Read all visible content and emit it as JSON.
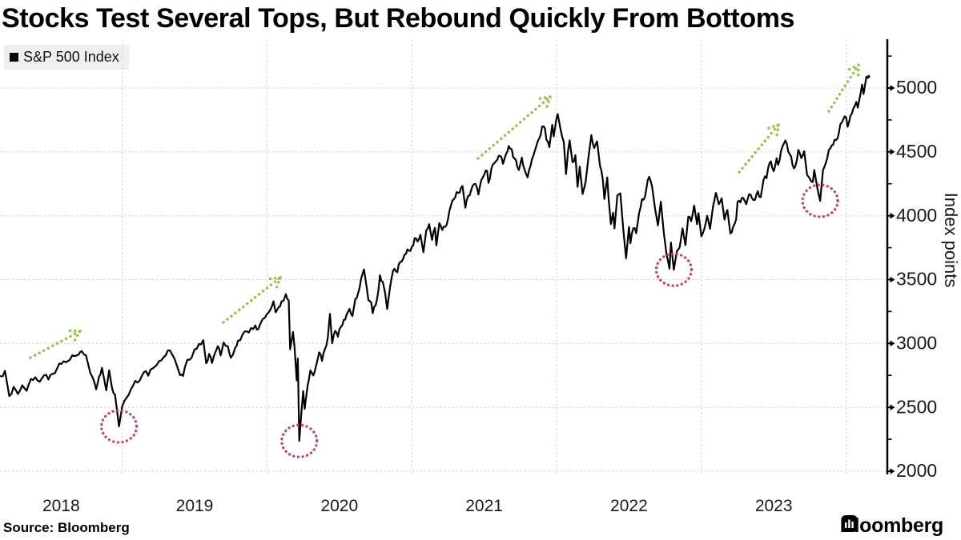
{
  "header": {
    "title": "Stocks Test Several Tops, But Rebound Quickly From Bottoms"
  },
  "legend": {
    "label": "S&P 500 Index",
    "swatch_color": "#0a0a0a"
  },
  "footer": {
    "source": "Source: Bloomberg",
    "brand": "Bloomberg"
  },
  "chart_data": {
    "type": "line",
    "title": "Stocks Test Several Tops, But Rebound Quickly From Bottoms",
    "series_name": "S&P 500 Index",
    "ylabel": "Index points",
    "xlabel": "",
    "x_tick_labels": [
      "2018",
      "2019",
      "2020",
      "2021",
      "2022",
      "2023"
    ],
    "x_gridline_years": [
      2019,
      2020,
      2021,
      2022,
      2023,
      2024
    ],
    "y_ticks": [
      2000,
      2500,
      3000,
      3500,
      4000,
      4500,
      5000
    ],
    "y_minor_ticks": [
      2250,
      2750,
      3250,
      3750,
      4250,
      4750,
      5250
    ],
    "ylim": [
      1825,
      5380
    ],
    "xlim_years": [
      2018.15,
      2024.3
    ],
    "grid": true,
    "legend_position": "top-left",
    "colors": {
      "line": "#000000",
      "top_arrows": "#8dc63d",
      "bottom_circles": "#e82c54",
      "grid": "#cccccc",
      "axis": "#000000",
      "tick_text": "#1a1a1a"
    },
    "annotations": {
      "tops_arrows": [
        {
          "from": [
            2018.366,
            2889
          ],
          "to": [
            2018.709,
            3096
          ]
        },
        {
          "from": [
            2019.699,
            3165
          ],
          "to": [
            2020.092,
            3516
          ]
        },
        {
          "from": [
            2021.458,
            4449
          ],
          "to": [
            2021.956,
            4931
          ]
        },
        {
          "from": [
            2023.261,
            4342
          ],
          "to": [
            2023.532,
            4712
          ]
        },
        {
          "from": [
            2023.88,
            4818
          ],
          "to": [
            2024.085,
            5181
          ]
        }
      ],
      "bottom_circles": [
        {
          "t": 2018.978,
          "value": 2351
        },
        {
          "t": 2020.223,
          "value": 2237
        },
        {
          "t": 2022.81,
          "value": 3577
        },
        {
          "t": 2023.82,
          "value": 4117
        }
      ]
    },
    "points": [
      [
        2018.16,
        2744
      ],
      [
        2018.19,
        2786
      ],
      [
        2018.22,
        2588
      ],
      [
        2018.25,
        2660
      ],
      [
        2018.28,
        2605
      ],
      [
        2018.31,
        2672
      ],
      [
        2018.34,
        2630
      ],
      [
        2018.37,
        2722
      ],
      [
        2018.4,
        2736
      ],
      [
        2018.43,
        2700
      ],
      [
        2018.46,
        2750
      ],
      [
        2018.49,
        2718
      ],
      [
        2018.52,
        2762
      ],
      [
        2018.55,
        2802
      ],
      [
        2018.58,
        2840
      ],
      [
        2018.61,
        2853
      ],
      [
        2018.64,
        2875
      ],
      [
        2018.67,
        2901
      ],
      [
        2018.7,
        2915
      ],
      [
        2018.72,
        2940
      ],
      [
        2018.75,
        2906
      ],
      [
        2018.78,
        2768
      ],
      [
        2018.8,
        2722
      ],
      [
        2018.82,
        2641
      ],
      [
        2018.84,
        2740
      ],
      [
        2018.86,
        2810
      ],
      [
        2018.89,
        2633
      ],
      [
        2018.91,
        2790
      ],
      [
        2018.93,
        2650
      ],
      [
        2018.95,
        2600
      ],
      [
        2018.978,
        2351
      ],
      [
        2019.0,
        2507
      ],
      [
        2019.03,
        2575
      ],
      [
        2019.06,
        2640
      ],
      [
        2019.09,
        2707
      ],
      [
        2019.12,
        2708
      ],
      [
        2019.15,
        2775
      ],
      [
        2019.18,
        2748
      ],
      [
        2019.21,
        2805
      ],
      [
        2019.24,
        2834
      ],
      [
        2019.27,
        2867
      ],
      [
        2019.3,
        2906
      ],
      [
        2019.33,
        2946
      ],
      [
        2019.36,
        2884
      ],
      [
        2019.4,
        2752
      ],
      [
        2019.42,
        2745
      ],
      [
        2019.45,
        2873
      ],
      [
        2019.48,
        2890
      ],
      [
        2019.5,
        2954
      ],
      [
        2019.53,
        2995
      ],
      [
        2019.56,
        3026
      ],
      [
        2019.58,
        2845
      ],
      [
        2019.6,
        2918
      ],
      [
        2019.62,
        2847
      ],
      [
        2019.64,
        2924
      ],
      [
        2019.66,
        2979
      ],
      [
        2019.68,
        2906
      ],
      [
        2019.7,
        3008
      ],
      [
        2019.73,
        2978
      ],
      [
        2019.75,
        2888
      ],
      [
        2019.78,
        2966
      ],
      [
        2019.8,
        3022
      ],
      [
        2019.83,
        3067
      ],
      [
        2019.86,
        3094
      ],
      [
        2019.89,
        3121
      ],
      [
        2019.92,
        3141
      ],
      [
        2019.94,
        3113
      ],
      [
        2019.97,
        3192
      ],
      [
        2020.0,
        3231
      ],
      [
        2020.02,
        3258
      ],
      [
        2020.045,
        3330
      ],
      [
        2020.06,
        3244
      ],
      [
        2020.08,
        3283
      ],
      [
        2020.1,
        3328
      ],
      [
        2020.13,
        3386
      ],
      [
        2020.15,
        3338
      ],
      [
        2020.16,
        2954
      ],
      [
        2020.18,
        3090
      ],
      [
        2020.19,
        2972
      ],
      [
        2020.205,
        2711
      ],
      [
        2020.213,
        2882
      ],
      [
        2020.223,
        2237
      ],
      [
        2020.237,
        2448
      ],
      [
        2020.25,
        2627
      ],
      [
        2020.26,
        2488
      ],
      [
        2020.28,
        2663
      ],
      [
        2020.3,
        2790
      ],
      [
        2020.32,
        2750
      ],
      [
        2020.34,
        2830
      ],
      [
        2020.36,
        2930
      ],
      [
        2020.38,
        2863
      ],
      [
        2020.4,
        2955
      ],
      [
        2020.42,
        3044
      ],
      [
        2020.435,
        3232
      ],
      [
        2020.45,
        3002
      ],
      [
        2020.47,
        3098
      ],
      [
        2020.49,
        3053
      ],
      [
        2020.51,
        3130
      ],
      [
        2020.53,
        3185
      ],
      [
        2020.55,
        3226
      ],
      [
        2020.57,
        3271
      ],
      [
        2020.59,
        3215
      ],
      [
        2020.61,
        3349
      ],
      [
        2020.63,
        3397
      ],
      [
        2020.65,
        3508
      ],
      [
        2020.67,
        3580
      ],
      [
        2020.69,
        3427
      ],
      [
        2020.7,
        3339
      ],
      [
        2020.72,
        3319
      ],
      [
        2020.73,
        3237
      ],
      [
        2020.75,
        3298
      ],
      [
        2020.77,
        3419
      ],
      [
        2020.78,
        3534
      ],
      [
        2020.8,
        3483
      ],
      [
        2020.815,
        3400
      ],
      [
        2020.83,
        3270
      ],
      [
        2020.85,
        3443
      ],
      [
        2020.86,
        3510
      ],
      [
        2020.88,
        3585
      ],
      [
        2020.9,
        3557
      ],
      [
        2020.92,
        3638
      ],
      [
        2020.94,
        3663
      ],
      [
        2020.96,
        3703
      ],
      [
        2020.98,
        3727
      ],
      [
        2021.0,
        3756
      ],
      [
        2021.02,
        3825
      ],
      [
        2021.04,
        3798
      ],
      [
        2021.06,
        3851
      ],
      [
        2021.08,
        3714
      ],
      [
        2021.1,
        3886
      ],
      [
        2021.12,
        3934
      ],
      [
        2021.14,
        3811
      ],
      [
        2021.16,
        3906
      ],
      [
        2021.17,
        3768
      ],
      [
        2021.19,
        3943
      ],
      [
        2021.21,
        3889
      ],
      [
        2021.23,
        3913
      ],
      [
        2021.25,
        3973
      ],
      [
        2021.27,
        4078
      ],
      [
        2021.29,
        4128
      ],
      [
        2021.31,
        4185
      ],
      [
        2021.33,
        4181
      ],
      [
        2021.35,
        4233
      ],
      [
        2021.37,
        4063
      ],
      [
        2021.39,
        4156
      ],
      [
        2021.41,
        4200
      ],
      [
        2021.43,
        4247
      ],
      [
        2021.45,
        4221
      ],
      [
        2021.46,
        4166
      ],
      [
        2021.48,
        4280
      ],
      [
        2021.5,
        4320
      ],
      [
        2021.52,
        4352
      ],
      [
        2021.53,
        4258
      ],
      [
        2021.55,
        4370
      ],
      [
        2021.57,
        4412
      ],
      [
        2021.59,
        4437
      ],
      [
        2021.61,
        4468
      ],
      [
        2021.63,
        4406
      ],
      [
        2021.65,
        4480
      ],
      [
        2021.67,
        4545
      ],
      [
        2021.69,
        4520
      ],
      [
        2021.7,
        4458
      ],
      [
        2021.72,
        4433
      ],
      [
        2021.74,
        4358
      ],
      [
        2021.76,
        4455
      ],
      [
        2021.78,
        4357
      ],
      [
        2021.8,
        4300
      ],
      [
        2021.82,
        4391
      ],
      [
        2021.84,
        4472
      ],
      [
        2021.86,
        4545
      ],
      [
        2021.88,
        4605
      ],
      [
        2021.9,
        4698
      ],
      [
        2021.92,
        4683
      ],
      [
        2021.93,
        4595
      ],
      [
        2021.95,
        4538
      ],
      [
        2021.97,
        4712
      ],
      [
        2021.98,
        4621
      ],
      [
        2022.0,
        4766
      ],
      [
        2022.008,
        4796
      ],
      [
        2022.03,
        4663
      ],
      [
        2022.05,
        4577
      ],
      [
        2022.065,
        4327
      ],
      [
        2022.08,
        4515
      ],
      [
        2022.09,
        4590
      ],
      [
        2022.11,
        4419
      ],
      [
        2022.13,
        4475
      ],
      [
        2022.145,
        4226
      ],
      [
        2022.16,
        4384
      ],
      [
        2022.18,
        4170
      ],
      [
        2022.2,
        4263
      ],
      [
        2022.22,
        4456
      ],
      [
        2022.24,
        4631
      ],
      [
        2022.26,
        4530
      ],
      [
        2022.28,
        4582
      ],
      [
        2022.3,
        4392
      ],
      [
        2022.32,
        4272
      ],
      [
        2022.33,
        4131
      ],
      [
        2022.35,
        4300
      ],
      [
        2022.36,
        4124
      ],
      [
        2022.375,
        3935
      ],
      [
        2022.39,
        4024
      ],
      [
        2022.4,
        3901
      ],
      [
        2022.42,
        4158
      ],
      [
        2022.44,
        4176
      ],
      [
        2022.46,
        3900
      ],
      [
        2022.48,
        3667
      ],
      [
        2022.5,
        3912
      ],
      [
        2022.51,
        3785
      ],
      [
        2022.53,
        3902
      ],
      [
        2022.55,
        3863
      ],
      [
        2022.57,
        4023
      ],
      [
        2022.59,
        4130
      ],
      [
        2022.61,
        4145
      ],
      [
        2022.63,
        4280
      ],
      [
        2022.64,
        4305
      ],
      [
        2022.66,
        4228
      ],
      [
        2022.68,
        4058
      ],
      [
        2022.7,
        3924
      ],
      [
        2022.72,
        4110
      ],
      [
        2022.74,
        3873
      ],
      [
        2022.76,
        3693
      ],
      [
        2022.78,
        3586
      ],
      [
        2022.79,
        3790
      ],
      [
        2022.81,
        3577
      ],
      [
        2022.83,
        3720
      ],
      [
        2022.85,
        3753
      ],
      [
        2022.87,
        3901
      ],
      [
        2022.89,
        3770
      ],
      [
        2022.91,
        3993
      ],
      [
        2022.93,
        3957
      ],
      [
        2022.95,
        4080
      ],
      [
        2022.97,
        3934
      ],
      [
        2022.98,
        4020
      ],
      [
        2023.0,
        3839
      ],
      [
        2023.02,
        3895
      ],
      [
        2023.04,
        3999
      ],
      [
        2023.06,
        3898
      ],
      [
        2023.08,
        4070
      ],
      [
        2023.1,
        4179
      ],
      [
        2023.12,
        4090
      ],
      [
        2023.14,
        4136
      ],
      [
        2023.16,
        3970
      ],
      [
        2023.18,
        4045
      ],
      [
        2023.2,
        3861
      ],
      [
        2023.22,
        3916
      ],
      [
        2023.24,
        3971
      ],
      [
        2023.25,
        4109
      ],
      [
        2023.27,
        4105
      ],
      [
        2023.29,
        4138
      ],
      [
        2023.31,
        4090
      ],
      [
        2023.33,
        4169
      ],
      [
        2023.35,
        4136
      ],
      [
        2023.37,
        4124
      ],
      [
        2023.39,
        4192
      ],
      [
        2023.41,
        4145
      ],
      [
        2023.43,
        4282
      ],
      [
        2023.45,
        4294
      ],
      [
        2023.47,
        4410
      ],
      [
        2023.48,
        4426
      ],
      [
        2023.5,
        4348
      ],
      [
        2023.52,
        4450
      ],
      [
        2023.53,
        4399
      ],
      [
        2023.55,
        4505
      ],
      [
        2023.57,
        4566
      ],
      [
        2023.58,
        4589
      ],
      [
        2023.6,
        4501
      ],
      [
        2023.62,
        4464
      ],
      [
        2023.64,
        4370
      ],
      [
        2023.66,
        4436
      ],
      [
        2023.67,
        4516
      ],
      [
        2023.69,
        4451
      ],
      [
        2023.71,
        4505
      ],
      [
        2023.73,
        4320
      ],
      [
        2023.75,
        4288
      ],
      [
        2023.77,
        4264
      ],
      [
        2023.78,
        4358
      ],
      [
        2023.8,
        4224
      ],
      [
        2023.82,
        4117
      ],
      [
        2023.84,
        4358
      ],
      [
        2023.86,
        4415
      ],
      [
        2023.88,
        4514
      ],
      [
        2023.9,
        4550
      ],
      [
        2023.92,
        4594
      ],
      [
        2023.94,
        4604
      ],
      [
        2023.96,
        4719
      ],
      [
        2023.98,
        4754
      ],
      [
        2024.0,
        4770
      ],
      [
        2024.01,
        4697
      ],
      [
        2024.03,
        4784
      ],
      [
        2024.05,
        4840
      ],
      [
        2024.07,
        4891
      ],
      [
        2024.08,
        4846
      ],
      [
        2024.1,
        4959
      ],
      [
        2024.11,
        5027
      ],
      [
        2024.12,
        4953
      ],
      [
        2024.14,
        5089
      ],
      [
        2024.15,
        5078
      ],
      [
        2024.155,
        5096
      ],
      [
        2024.16,
        5088
      ]
    ]
  }
}
